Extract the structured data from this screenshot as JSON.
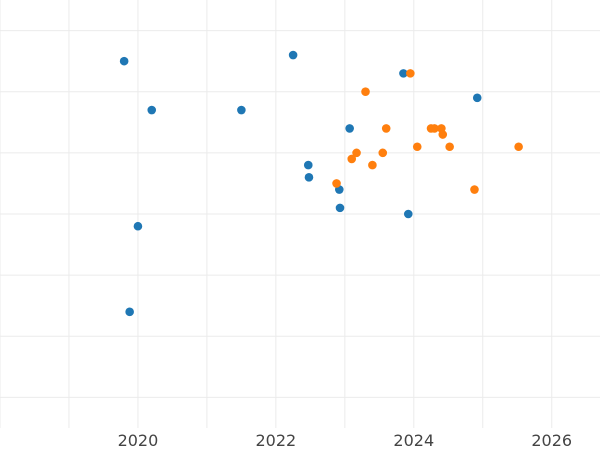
{
  "chart_data": {
    "type": "scatter",
    "title": "",
    "xlabel": "",
    "ylabel": "",
    "grid": true,
    "legend": "none",
    "xlim": [
      2018.0,
      2026.7
    ],
    "ylim": [
      -0.5,
      6.5
    ],
    "x_ticks": [
      2020,
      2022,
      2024,
      2026
    ],
    "x_tick_labels": [
      "2020",
      "2022",
      "2024",
      "2026"
    ],
    "y_gridlines": [
      0,
      1,
      2,
      3,
      4,
      5,
      6
    ],
    "series": [
      {
        "color": "#1f77b4",
        "points": [
          {
            "x": 2019.8,
            "y": 5.5
          },
          {
            "x": 2020.2,
            "y": 4.7
          },
          {
            "x": 2021.5,
            "y": 4.7
          },
          {
            "x": 2022.25,
            "y": 5.6
          },
          {
            "x": 2022.47,
            "y": 3.8
          },
          {
            "x": 2022.48,
            "y": 3.6
          },
          {
            "x": 2022.92,
            "y": 3.4
          },
          {
            "x": 2022.93,
            "y": 3.1
          },
          {
            "x": 2023.07,
            "y": 4.4
          },
          {
            "x": 2023.85,
            "y": 5.3
          },
          {
            "x": 2023.92,
            "y": 3.0
          },
          {
            "x": 2024.92,
            "y": 4.9
          },
          {
            "x": 2020.0,
            "y": 2.8
          },
          {
            "x": 2019.88,
            "y": 1.4
          }
        ]
      },
      {
        "color": "#ff7f0e",
        "points": [
          {
            "x": 2022.88,
            "y": 3.5
          },
          {
            "x": 2023.1,
            "y": 3.9
          },
          {
            "x": 2023.17,
            "y": 4.0
          },
          {
            "x": 2023.3,
            "y": 5.0
          },
          {
            "x": 2023.4,
            "y": 3.8
          },
          {
            "x": 2023.55,
            "y": 4.0
          },
          {
            "x": 2023.6,
            "y": 4.4
          },
          {
            "x": 2023.95,
            "y": 5.3
          },
          {
            "x": 2024.05,
            "y": 4.1
          },
          {
            "x": 2024.25,
            "y": 4.4
          },
          {
            "x": 2024.3,
            "y": 4.4
          },
          {
            "x": 2024.4,
            "y": 4.4
          },
          {
            "x": 2024.42,
            "y": 4.3
          },
          {
            "x": 2024.52,
            "y": 4.1
          },
          {
            "x": 2024.88,
            "y": 3.4
          },
          {
            "x": 2025.52,
            "y": 4.1
          }
        ]
      }
    ]
  }
}
